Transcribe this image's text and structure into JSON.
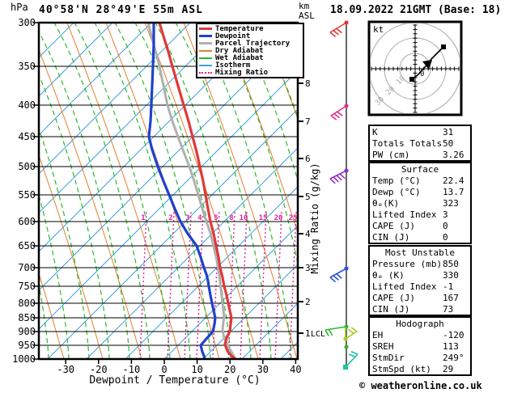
{
  "header": {
    "pressure_unit": "hPa",
    "station": "40°58'N 28°49'E 55m ASL",
    "altitude_unit_line1": "km",
    "altitude_unit_line2": "ASL",
    "datetime": "18.09.2022 21GMT (Base: 18)"
  },
  "legend": [
    {
      "label": "Temperature",
      "color": "#e03838",
      "style": "solid",
      "weight": 3
    },
    {
      "label": "Dewpoint",
      "color": "#2040cc",
      "style": "solid",
      "weight": 3
    },
    {
      "label": "Parcel Trajectory",
      "color": "#b0b0b0",
      "style": "solid",
      "weight": 3
    },
    {
      "label": "Dry Adiabat",
      "color": "#e08030",
      "style": "solid",
      "weight": 1
    },
    {
      "label": "Wet Adiabat",
      "color": "#2eb82e",
      "style": "solid",
      "weight": 1
    },
    {
      "label": "Isotherm",
      "color": "#3da0e0",
      "style": "solid",
      "weight": 1
    },
    {
      "label": "Mixing Ratio",
      "color": "#e020a0",
      "style": "dotted",
      "weight": 1
    }
  ],
  "axes": {
    "pressure_ticks": [
      "300",
      "350",
      "400",
      "450",
      "500",
      "550",
      "600",
      "650",
      "700",
      "750",
      "800",
      "850",
      "900",
      "950",
      "1000"
    ],
    "temp_ticks": [
      "-30",
      "-20",
      "-10",
      "0",
      "10",
      "20",
      "30",
      "40"
    ],
    "xlabel": "Dewpoint / Temperature (°C)",
    "km_ticks": [
      "8",
      "7",
      "6",
      "5",
      "4",
      "3",
      "2",
      "1"
    ],
    "lcl_label": "LCL",
    "mixing_ratio_labels": [
      "1",
      "2",
      "3",
      "4",
      "5",
      "8",
      "10",
      "15",
      "20",
      "25"
    ],
    "mixing_axis_label": "Mixing Ratio (g/kg)"
  },
  "hodograph": {
    "unit": "kt",
    "origin_label": "0",
    "ring_labels": [
      "10",
      "20",
      "30"
    ]
  },
  "panels": [
    {
      "title": "",
      "rows": [
        [
          "K",
          "31"
        ],
        [
          "Totals Totals",
          "50"
        ],
        [
          "PW (cm)",
          "3.26"
        ]
      ]
    },
    {
      "title": "Surface",
      "rows": [
        [
          "Temp (°C)",
          "22.4"
        ],
        [
          "Dewp (°C)",
          "13.7"
        ],
        [
          "θₑ(K)",
          "323"
        ],
        [
          "Lifted Index",
          "3"
        ],
        [
          "CAPE (J)",
          "0"
        ],
        [
          "CIN (J)",
          "0"
        ]
      ]
    },
    {
      "title": "Most Unstable",
      "rows": [
        [
          "Pressure (mb)",
          "850"
        ],
        [
          "θₑ (K)",
          "330"
        ],
        [
          "Lifted Index",
          "-1"
        ],
        [
          "CAPE (J)",
          "167"
        ],
        [
          "CIN (J)",
          "73"
        ]
      ]
    },
    {
      "title": "Hodograph",
      "rows": [
        [
          "EH",
          "-120"
        ],
        [
          "SREH",
          "113"
        ],
        [
          "StmDir",
          "249°"
        ],
        [
          "StmSpd (kt)",
          "29"
        ]
      ]
    }
  ],
  "footer": "© weatheronline.co.uk",
  "chart_data": {
    "type": "skewt_logp_sounding",
    "title": "40°58'N 28°49'E 55m ASL",
    "valid_time": "18.09.2022 21GMT (Base: 18)",
    "pressure_axis_range_hpa": [
      300,
      1000
    ],
    "temp_axis_range_c": [
      -40,
      40
    ],
    "temp_axis_ticks_c": [
      -30,
      -20,
      -10,
      0,
      10,
      20,
      30,
      40
    ],
    "km_axis_ticks": [
      8,
      7,
      6,
      5,
      4,
      3,
      2,
      1
    ],
    "lcl_height_km": 1,
    "mixing_ratio_lines_g_per_kg": [
      1,
      2,
      3,
      4,
      5,
      8,
      10,
      15,
      20,
      25
    ],
    "pressure_levels_hpa": [
      300,
      350,
      400,
      450,
      500,
      550,
      600,
      650,
      700,
      750,
      800,
      850,
      900,
      950,
      1000
    ],
    "temperature_c": [
      -42,
      -33,
      -25,
      -19,
      -13,
      -8,
      -4,
      1,
      5,
      8.4,
      11.8,
      14.8,
      16.3,
      17.3,
      22.4
    ],
    "dewpoint_c": [
      -44,
      -39,
      -35,
      -32,
      -26,
      -19,
      -12.5,
      -5,
      0,
      3.4,
      6.8,
      9.9,
      11.1,
      9.2,
      13.7
    ],
    "parcel_note": "surface parcel trajectory drawn in gray from 22.4 °C",
    "wind_barb_colors_top_to_bottom": [
      "red",
      "pink",
      "purple",
      "blue",
      "green",
      "yellow-green",
      "green-dot",
      "teal"
    ],
    "hodograph": {
      "rings_kt": [
        10,
        20,
        30
      ],
      "trace_note": "SW-NE oriented trace with arrowhead, storm motion 249° / 29 kt"
    },
    "indices": {
      "K": 31,
      "Totals_Totals": 50,
      "PW_cm": 3.26,
      "surface": {
        "temp_c": 22.4,
        "dewp_c": 13.7,
        "theta_e_k": 323,
        "lifted_index": 3,
        "cape_j": 0,
        "cin_j": 0
      },
      "most_unstable": {
        "pressure_mb": 850,
        "theta_e_k": 330,
        "lifted_index": -1,
        "cape_j": 167,
        "cin_j": 73
      },
      "hodograph": {
        "EH": -120,
        "SREH": 113,
        "StmDir_deg": 249,
        "StmSpd_kt": 29
      }
    }
  }
}
